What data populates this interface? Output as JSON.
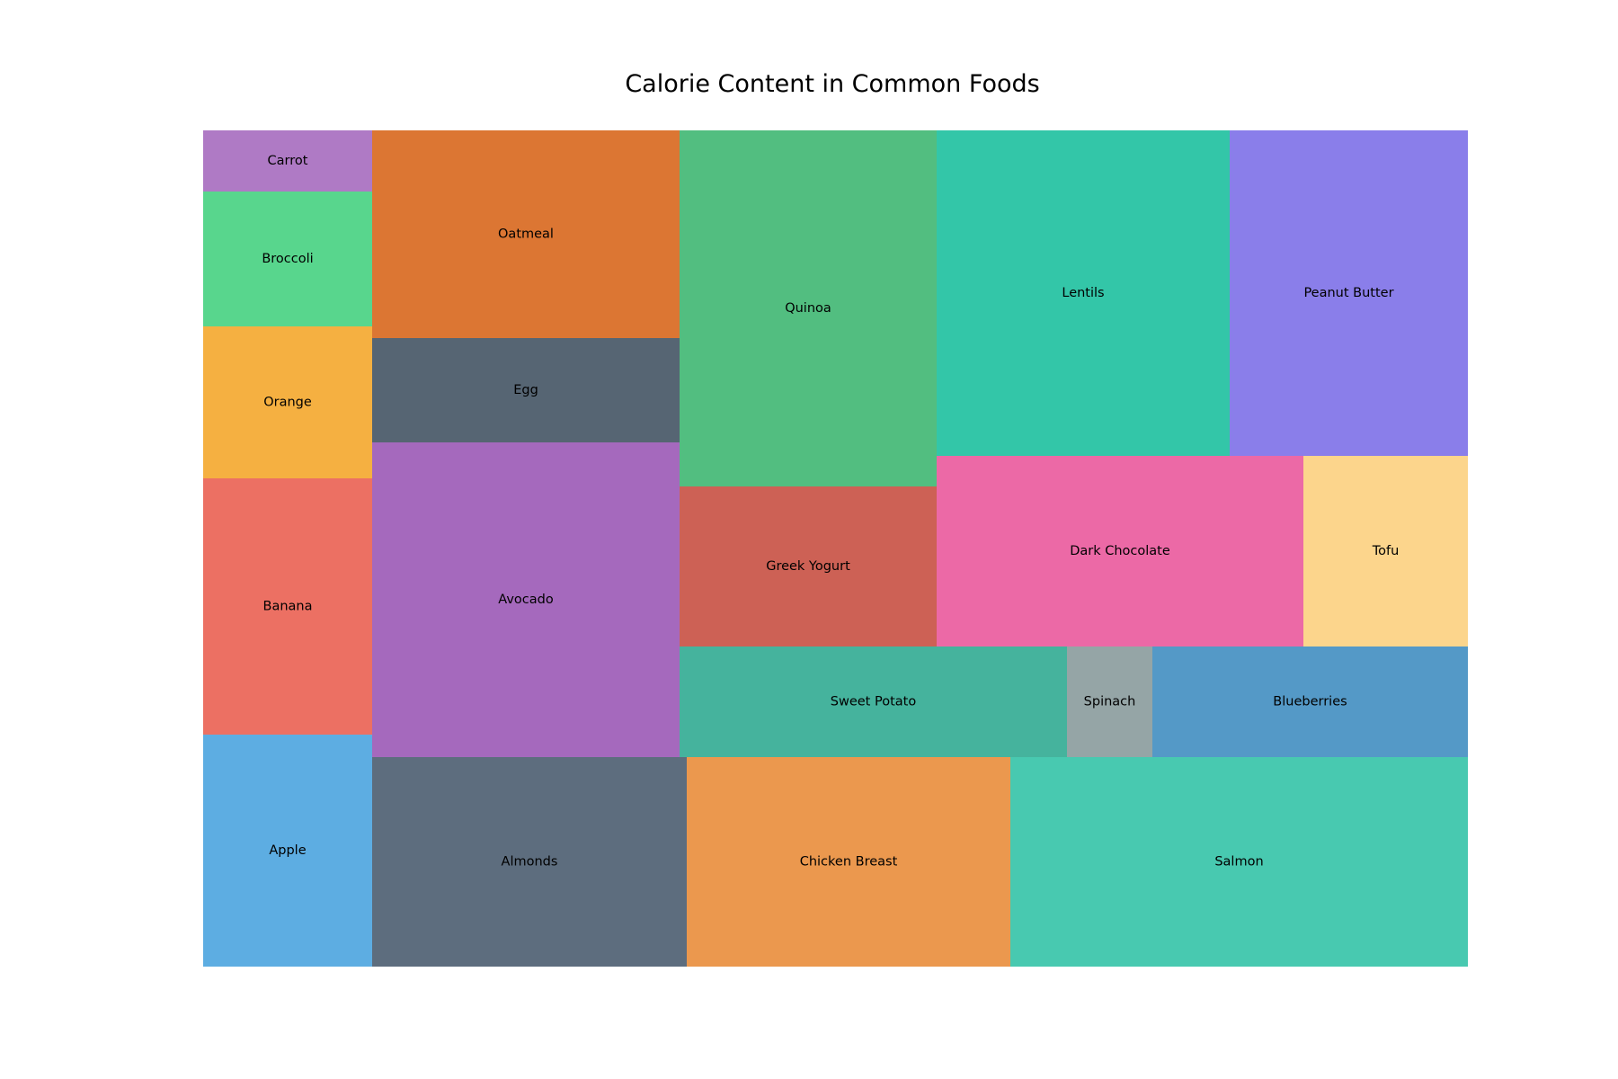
{
  "chart_data": {
    "type": "treemap",
    "title": "Calorie Content in Common Foods",
    "tiles": [
      {
        "label": "Carrot",
        "color": "#AF7AC5"
      },
      {
        "label": "Broccoli",
        "color": "#58D68D"
      },
      {
        "label": "Orange",
        "color": "#F5B041"
      },
      {
        "label": "Banana",
        "color": "#EC7063"
      },
      {
        "label": "Apple",
        "color": "#5DADE2"
      },
      {
        "label": "Oatmeal",
        "color": "#DC7633"
      },
      {
        "label": "Egg",
        "color": "#566573"
      },
      {
        "label": "Avocado",
        "color": "#A569BD"
      },
      {
        "label": "Almonds",
        "color": "#5D6D7E"
      },
      {
        "label": "Quinoa",
        "color": "#52BE80"
      },
      {
        "label": "Greek Yogurt",
        "color": "#CD6155"
      },
      {
        "label": "Lentils",
        "color": "#33C6A8"
      },
      {
        "label": "Peanut Butter",
        "color": "#8A7EEA"
      },
      {
        "label": "Dark Chocolate",
        "color": "#EC69A6"
      },
      {
        "label": "Tofu",
        "color": "#FCD58C"
      },
      {
        "label": "Sweet Potato",
        "color": "#45B39D"
      },
      {
        "label": "Spinach",
        "color": "#95A5A6"
      },
      {
        "label": "Blueberries",
        "color": "#5499C7"
      },
      {
        "label": "Chicken Breast",
        "color": "#EB984E"
      },
      {
        "label": "Salmon",
        "color": "#48C9B0"
      }
    ]
  }
}
